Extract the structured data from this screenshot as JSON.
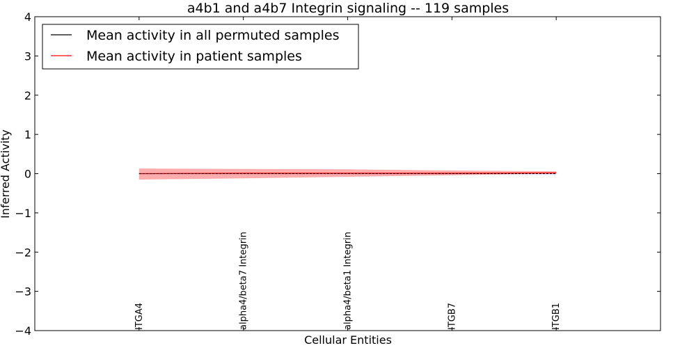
{
  "chart_data": {
    "type": "line",
    "title": "a4b1 and a4b7 Integrin signaling -- 119 samples",
    "xlabel": "Cellular Entities",
    "ylabel": "Inferred Activity",
    "ylim": [
      -4,
      4
    ],
    "yticks": [
      -4,
      -3,
      -2,
      -1,
      0,
      1,
      2,
      3,
      4
    ],
    "ytick_labels": [
      "−4",
      "−3",
      "−2",
      "−1",
      "0",
      "1",
      "2",
      "3",
      "4"
    ],
    "xlim": [
      -1,
      5
    ],
    "categories": [
      "ITGA4",
      "alpha4/beta7 Integrin",
      "alpha4/beta1 Integrin",
      "ITGB7",
      "ITGB1"
    ],
    "grid": false,
    "legend_position": "top-left",
    "series": [
      {
        "name": "Mean activity in all permuted samples",
        "color": "#000000",
        "values": [
          0.0,
          0.0,
          0.0,
          0.0,
          0.0
        ],
        "band_lower": [
          -0.02,
          -0.02,
          -0.02,
          -0.02,
          -0.02
        ],
        "band_upper": [
          0.02,
          0.02,
          0.02,
          0.02,
          0.02
        ]
      },
      {
        "name": "Mean activity in patient samples",
        "color": "#ff0000",
        "values": [
          0.0,
          0.01,
          0.01,
          0.01,
          0.02
        ],
        "band_lower": [
          -0.15,
          -0.12,
          -0.08,
          -0.04,
          0.0
        ],
        "band_upper": [
          0.13,
          0.12,
          0.11,
          0.08,
          0.06
        ]
      }
    ]
  },
  "colors": {
    "patient_band": "#ff8080",
    "permuted_band": "#bdbdf0",
    "axes": "#000000"
  }
}
